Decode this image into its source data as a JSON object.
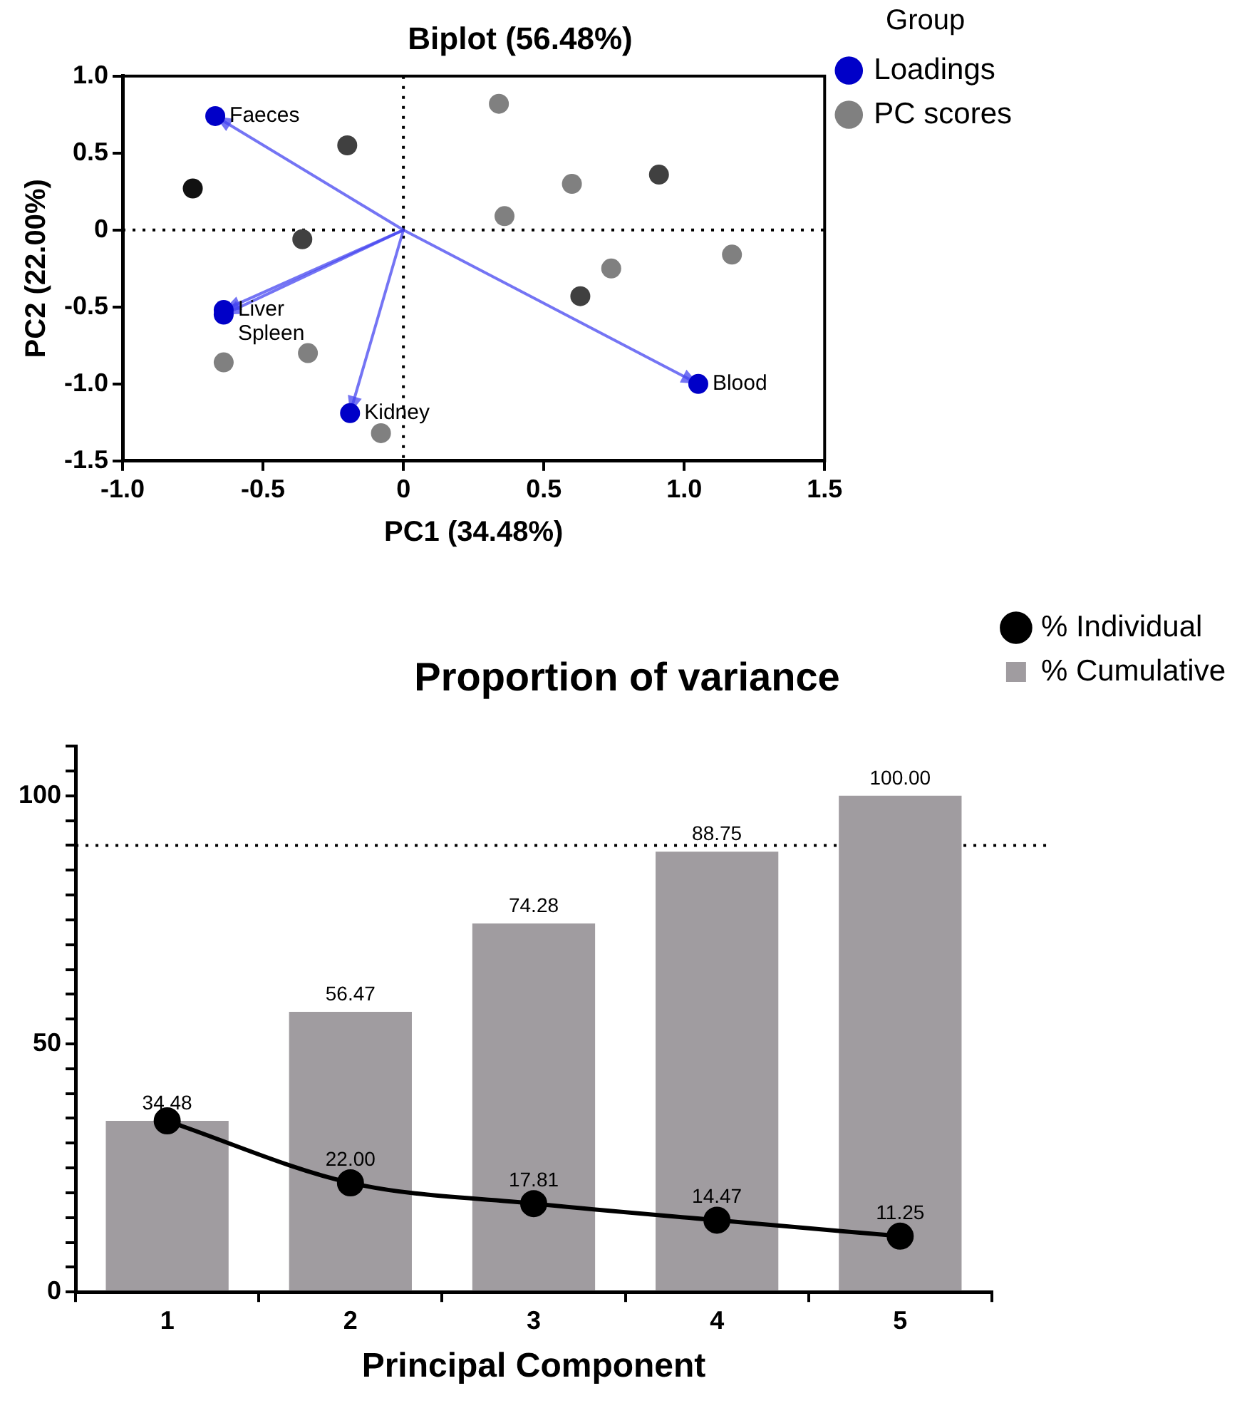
{
  "chart_data": [
    {
      "type": "scatter",
      "title": "Biplot (56.48%)",
      "xlabel": "PC1 (34.48%)",
      "ylabel": "PC2 (22.00%)",
      "legend_title": "Group",
      "legend": "top right",
      "grid": false,
      "marker": "circle",
      "xlim": [
        -1.0,
        1.5
      ],
      "xticks": [
        {
          "value": -1.0,
          "label": "-1.0"
        },
        {
          "value": -0.5,
          "label": "-0.5"
        },
        0,
        {
          "value": 0.5,
          "label": "0.5"
        },
        {
          "value": 1.0,
          "label": "1.0"
        },
        {
          "value": 1.5,
          "label": "1.5"
        }
      ],
      "ylim": [
        -1.5,
        1.0
      ],
      "yticks": [
        {
          "value": -1.5,
          "label": "-1.5"
        },
        {
          "value": -1.0,
          "label": "-1.0"
        },
        {
          "value": -0.5,
          "label": "-0.5"
        },
        0,
        {
          "value": 0.5,
          "label": "0.5"
        },
        {
          "value": 1.0,
          "label": "1.0"
        }
      ],
      "ref_lines": [
        {
          "axis": "x",
          "value": 0,
          "line_style": "dotted",
          "color": "#000000"
        },
        {
          "axis": "y",
          "value": 0,
          "line_style": "dotted",
          "color": "#000000"
        }
      ],
      "series": [
        {
          "name": "Loadings",
          "color": "#0000c8",
          "x": [
            -0.67,
            -0.64,
            -0.64,
            -0.19,
            1.05
          ],
          "values": [
            0.74,
            -0.52,
            -0.55,
            -1.19,
            -1.0
          ]
        },
        {
          "name": "PC scores",
          "color": "#808080",
          "colors": [
            "#808080",
            "#404040",
            "#111111",
            "#808080",
            "#404040",
            "#808080",
            "#404040",
            "#808080",
            "#808080",
            "#404040",
            "#808080",
            "#808080",
            "#808080"
          ],
          "x": [
            0.34,
            -0.2,
            -0.75,
            0.6,
            0.91,
            0.36,
            -0.36,
            1.17,
            0.74,
            0.63,
            -0.64,
            -0.34,
            -0.08
          ],
          "values": [
            0.82,
            0.55,
            0.27,
            0.3,
            0.36,
            0.09,
            -0.06,
            -0.16,
            -0.25,
            -0.43,
            -0.86,
            -0.8,
            -1.32
          ]
        }
      ],
      "annotations": [
        {
          "text": "Faeces",
          "x": -0.67,
          "y": 0.74
        },
        {
          "text": "Liver",
          "x": -0.64,
          "y": -0.52
        },
        {
          "text": "Spleen",
          "x": -0.64,
          "y": -0.55
        },
        {
          "text": "Kidney",
          "x": -0.19,
          "y": -1.19
        },
        {
          "text": "Blood",
          "x": 1.05,
          "y": -1.0
        }
      ]
    },
    {
      "type": "bar",
      "title": "Proportion of variance",
      "xlabel": "Principal Component",
      "categories": [
        "1",
        "2",
        "3",
        "4",
        "5"
      ],
      "legend": "top right",
      "grid": false,
      "ylim": [
        0,
        110
      ],
      "yticks": [
        0,
        {
          "value": 5,
          "label": null
        },
        {
          "value": 10,
          "label": null
        },
        {
          "value": 15,
          "label": null
        },
        {
          "value": 20,
          "label": null
        },
        {
          "value": 25,
          "label": null
        },
        {
          "value": 30,
          "label": null
        },
        {
          "value": 35,
          "label": null
        },
        {
          "value": 40,
          "label": null
        },
        {
          "value": 45,
          "label": null
        },
        50,
        {
          "value": 55,
          "label": null
        },
        {
          "value": 60,
          "label": null
        },
        {
          "value": 65,
          "label": null
        },
        {
          "value": 70,
          "label": null
        },
        {
          "value": 75,
          "label": null
        },
        {
          "value": 80,
          "label": null
        },
        {
          "value": 85,
          "label": null
        },
        {
          "value": 90,
          "label": null
        },
        {
          "value": 95,
          "label": null
        },
        100,
        {
          "value": 105,
          "label": null
        },
        {
          "value": 110,
          "label": null
        }
      ],
      "ref_lines": [
        {
          "axis": "y",
          "value": 90,
          "line_style": "dotted",
          "color": "#000000"
        }
      ],
      "series": [
        {
          "name": "% Individual",
          "type": "line",
          "color": "#000000",
          "marker": "circle",
          "values": [
            34.48,
            22.0,
            17.81,
            14.47,
            11.25
          ],
          "value_labels": [
            null,
            "22.00",
            "17.81",
            "14.47",
            "11.25"
          ]
        },
        {
          "name": "% Cumulative",
          "color": "#a09ca0",
          "values": [
            34.48,
            56.47,
            74.28,
            88.75,
            100.0
          ],
          "value_labels": [
            "34.48",
            "56.47",
            "74.28",
            "88.75",
            "100.00"
          ]
        }
      ]
    }
  ]
}
